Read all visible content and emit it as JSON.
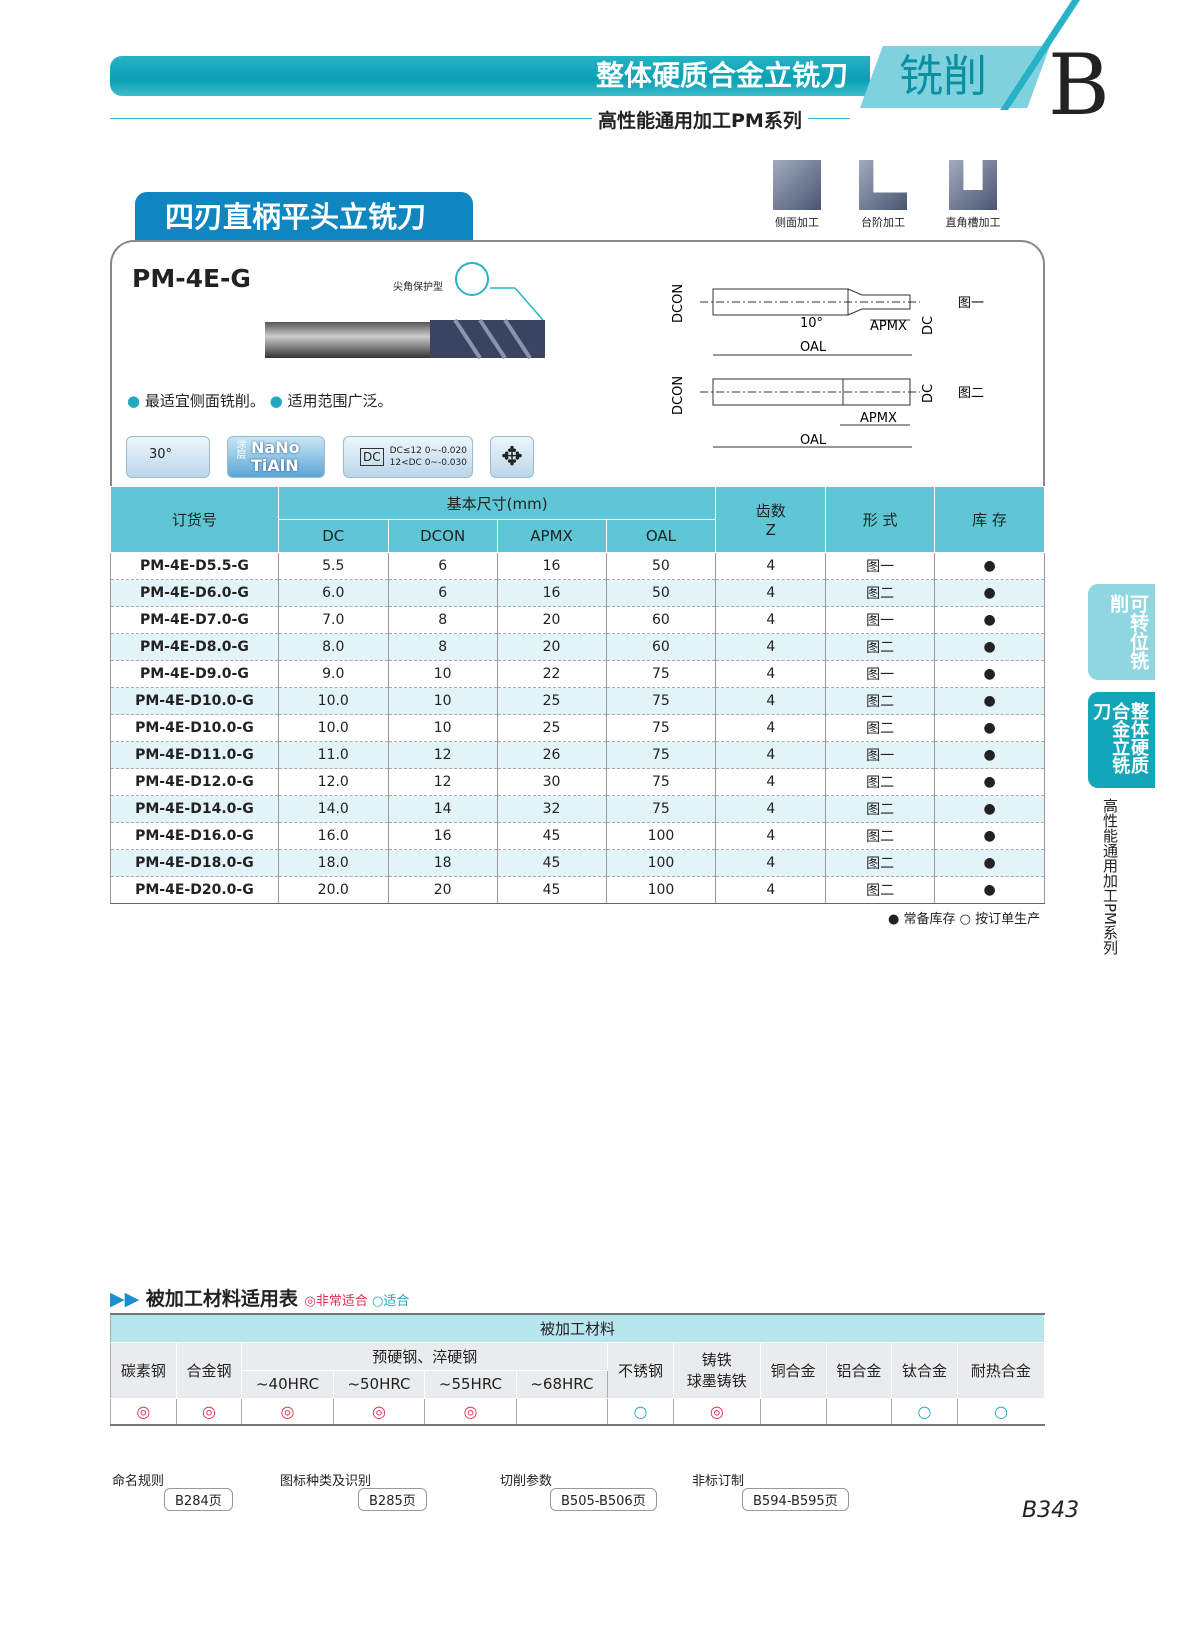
{
  "header": {
    "main": "整体硬质合金立铣刀",
    "category": "铣削",
    "section_letter": "B",
    "series": "高性能通用加工PM系列"
  },
  "product": {
    "title": "四刃直柄平头立铣刀",
    "model": "PM-4E-G",
    "corner_note": "尖角保护型",
    "features": [
      "最适宜侧面铣削。",
      "适用范围广泛。"
    ]
  },
  "operations": [
    "侧面加工",
    "台阶加工",
    "直角槽加工"
  ],
  "badges": {
    "helix": "30°",
    "coating_label": "涂层",
    "coating_top": "NaNo",
    "coating_bottom": "TiAlN",
    "tol_symbol": "DC",
    "tol_line1": "DC≤12  0~-0.020",
    "tol_line2": "12<DC  0~-0.030"
  },
  "drawing": {
    "fig1": "图一",
    "fig2": "图二",
    "dcon": "DCON",
    "dc": "DC",
    "apmx": "APMX",
    "oal": "OAL",
    "angle": "10°"
  },
  "spec_table": {
    "headers": {
      "order": "订货号",
      "basic": "基本尺寸(mm)",
      "dc": "DC",
      "dcon": "DCON",
      "apmx": "APMX",
      "oal": "OAL",
      "teeth": "齿数",
      "z": "Z",
      "form": "形 式",
      "stock": "库 存"
    },
    "rows": [
      [
        "PM-4E-D5.5-G",
        "5.5",
        "6",
        "16",
        "50",
        "4",
        "图一",
        "●"
      ],
      [
        "PM-4E-D6.0-G",
        "6.0",
        "6",
        "16",
        "50",
        "4",
        "图二",
        "●"
      ],
      [
        "PM-4E-D7.0-G",
        "7.0",
        "8",
        "20",
        "60",
        "4",
        "图一",
        "●"
      ],
      [
        "PM-4E-D8.0-G",
        "8.0",
        "8",
        "20",
        "60",
        "4",
        "图二",
        "●"
      ],
      [
        "PM-4E-D9.0-G",
        "9.0",
        "10",
        "22",
        "75",
        "4",
        "图一",
        "●"
      ],
      [
        "PM-4E-D10.0-G",
        "10.0",
        "10",
        "25",
        "75",
        "4",
        "图二",
        "●"
      ],
      [
        "PM-4E-D10.0-G",
        "10.0",
        "10",
        "25",
        "75",
        "4",
        "图二",
        "●"
      ],
      [
        "PM-4E-D11.0-G",
        "11.0",
        "12",
        "26",
        "75",
        "4",
        "图一",
        "●"
      ],
      [
        "PM-4E-D12.0-G",
        "12.0",
        "12",
        "30",
        "75",
        "4",
        "图二",
        "●"
      ],
      [
        "PM-4E-D14.0-G",
        "14.0",
        "14",
        "32",
        "75",
        "4",
        "图二",
        "●"
      ],
      [
        "PM-4E-D16.0-G",
        "16.0",
        "16",
        "45",
        "100",
        "4",
        "图二",
        "●"
      ],
      [
        "PM-4E-D18.0-G",
        "18.0",
        "18",
        "45",
        "100",
        "4",
        "图二",
        "●"
      ],
      [
        "PM-4E-D20.0-G",
        "20.0",
        "20",
        "45",
        "100",
        "4",
        "图二",
        "●"
      ]
    ],
    "legend": "● 常备库存 ○ 按订单生产"
  },
  "side_tabs": {
    "tab1": "可转位铣削",
    "tab2": "整体硬质合金立铣刀",
    "vertical": "高性能通用加工PM系列"
  },
  "materials": {
    "title": "被加工材料适用表",
    "legend_very": "◎非常适合",
    "legend_ok": "○适合",
    "group": "被加工材料",
    "columns": [
      "碳素钢",
      "合金钢",
      "预硬钢、淬硬钢",
      "不锈钢",
      "铸铁\n球墨铸铁",
      "铜合金",
      "铝合金",
      "钛合金",
      "耐热合金"
    ],
    "hardness": [
      "~40HRC",
      "~50HRC",
      "~55HRC",
      "~68HRC"
    ],
    "ratings": [
      "◎",
      "◎",
      "◎",
      "◎",
      "◎",
      "",
      "○",
      "◎",
      "",
      "",
      "○",
      "○"
    ]
  },
  "refs": [
    {
      "label": "命名规则",
      "page": "B284页"
    },
    {
      "label": "图标种类及识别",
      "page": "B285页"
    },
    {
      "label": "切削参数",
      "page": "B505-B506页"
    },
    {
      "label": "非标订制",
      "page": "B594-B595页"
    }
  ],
  "page_number": "B343",
  "colors": {
    "teal": "#27b3c5",
    "blue": "#0f86c0",
    "very_suitable": "#e03050",
    "suitable": "#22a9c0"
  }
}
